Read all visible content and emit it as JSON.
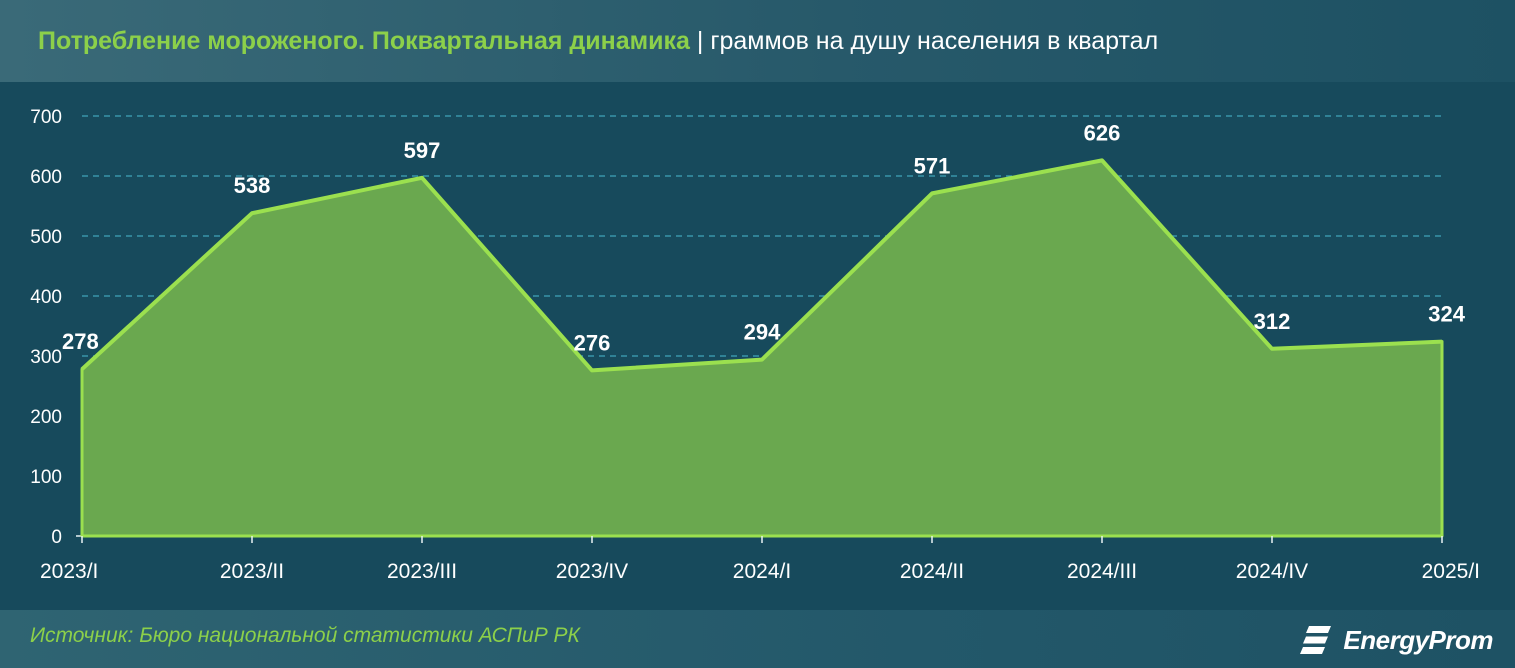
{
  "header": {
    "title_main": "Потребление мороженого. Поквартальная динамика",
    "title_sep": "|",
    "title_sub": "граммов на душу населения в квартал"
  },
  "footer": {
    "source": "Источник: Бюро национальной статистики АСПиР РК",
    "logo_text": "EnergyProm",
    "logo_icon": "energyprom-logo-icon"
  },
  "colors": {
    "background": "#174a5c",
    "fill": "#6aa84f",
    "line": "#9be04f",
    "grid": "#3fa3b8",
    "title_accent": "#8cd04a"
  },
  "chart_data": {
    "type": "area",
    "categories": [
      "2023/I",
      "2023/II",
      "2023/III",
      "2023/IV",
      "2024/I",
      "2024/II",
      "2024/III",
      "2024/IV",
      "2025/I"
    ],
    "series": [
      {
        "values": [
          278,
          538,
          597,
          276,
          294,
          571,
          626,
          312,
          324
        ]
      }
    ],
    "ylim": [
      0,
      700
    ],
    "yticks": [
      0,
      100,
      200,
      300,
      400,
      500,
      600,
      700
    ],
    "grid": true,
    "data_labels": true
  }
}
